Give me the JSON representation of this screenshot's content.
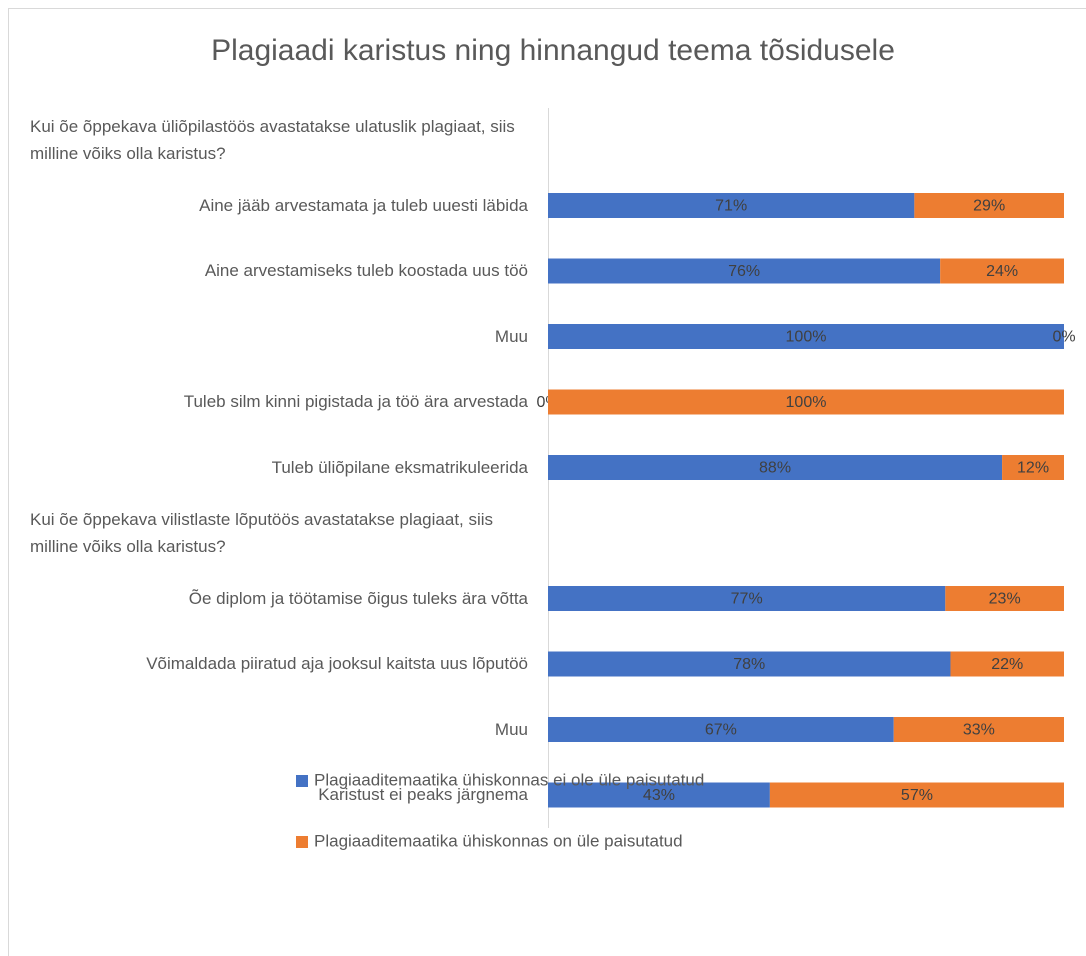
{
  "chart_data": {
    "type": "stacked_bar_horizontal",
    "title": "Plagiaadi karistus ning hinnangud teema tõsidusele",
    "categories": [
      "Kui õe õppekava üliõpilastöös avastatakse ulatuslik plagiaat, siis milline võiks olla karistus?",
      "Aine jääb arvestamata ja tuleb uuesti läbida",
      "Aine arvestamiseks tuleb koostada uus töö",
      "Muu",
      "Tuleb silm kinni pigistada ja töö ära arvestada",
      "Tuleb üliõpilane eksmatrikuleerida",
      "Kui õe õppekava vilistlaste lõputöös avastatakse plagiaat, siis milline võiks olla karistus?",
      "Õe diplom ja töötamise õigus tuleks ära võtta",
      "Võimaldada piiratud aja jooksul kaitsta uus lõputöö",
      "Muu",
      "Karistust ei peaks järgnema"
    ],
    "series": [
      {
        "name": "Plagiaaditemaatika ühiskonnas ei ole üle paisutatud",
        "color": "#4472c4",
        "values": [
          null,
          71,
          76,
          100,
          0,
          88,
          null,
          77,
          78,
          67,
          43
        ],
        "value_labels": [
          null,
          "71%",
          "76%",
          "100%",
          "0%",
          "88%",
          null,
          "77%",
          "78%",
          "67%",
          "43%"
        ]
      },
      {
        "name": "Plagiaaditemaatika ühiskonnas on üle paisutatud",
        "color": "#ed7d31",
        "values": [
          null,
          29,
          24,
          0,
          100,
          12,
          null,
          23,
          22,
          33,
          57
        ],
        "value_labels": [
          null,
          "29%",
          "24%",
          "0%",
          "100%",
          "12%",
          null,
          "23%",
          "22%",
          "33%",
          "57%"
        ]
      }
    ],
    "xlim": [
      0,
      100
    ],
    "legend": "bottom"
  }
}
